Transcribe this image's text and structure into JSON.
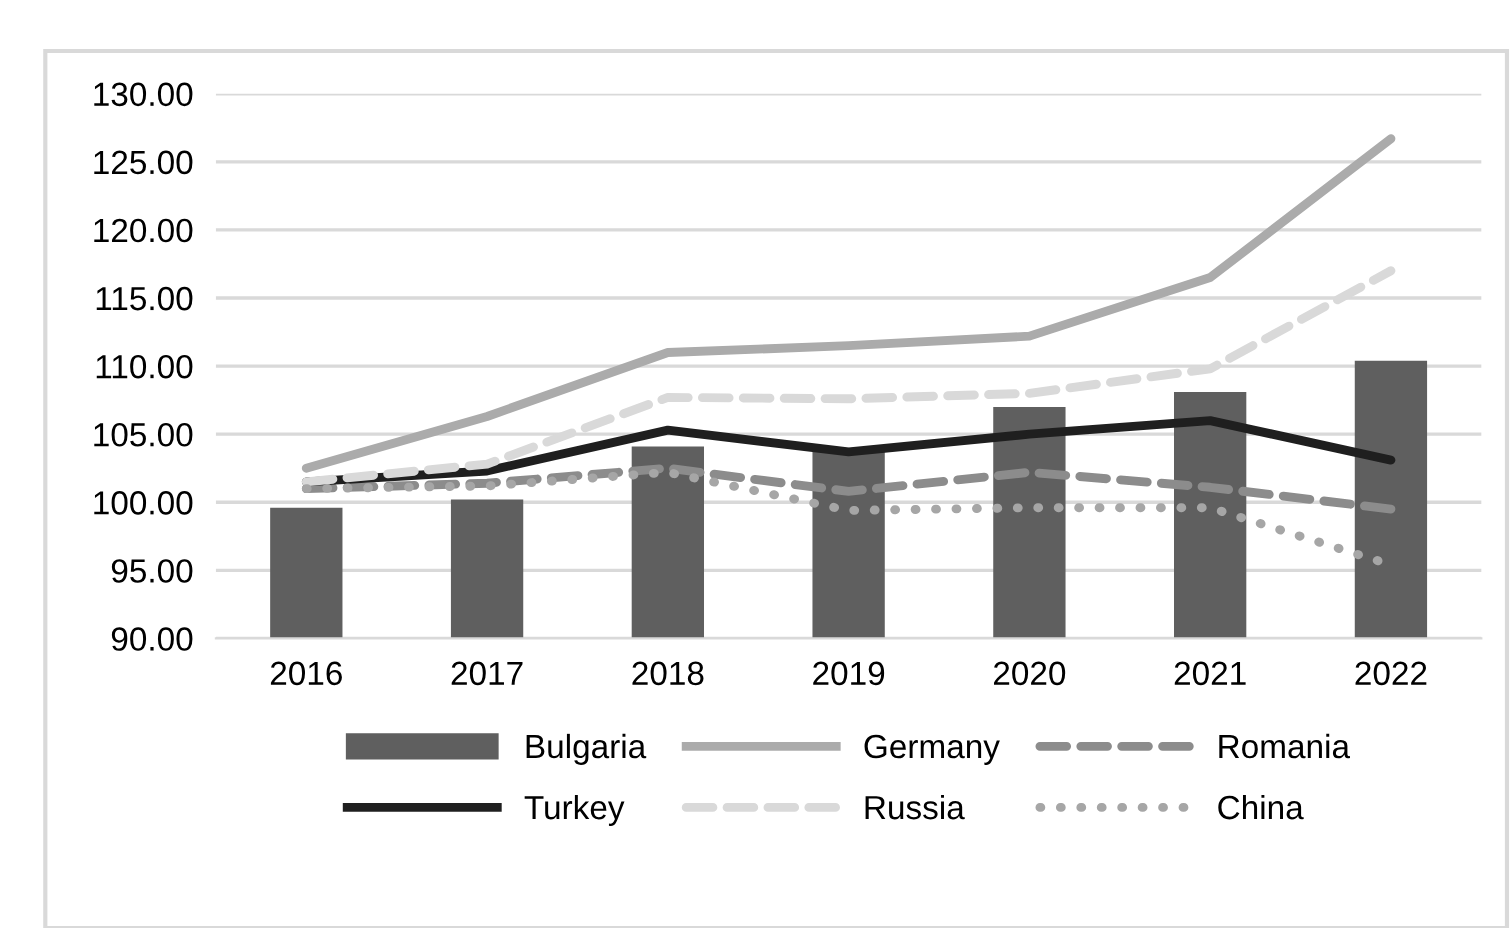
{
  "chart_data": {
    "type": "bar",
    "categories": [
      "2016",
      "2017",
      "2018",
      "2019",
      "2020",
      "2021",
      "2022"
    ],
    "series": [
      {
        "name": "Bulgaria",
        "color": "#5f5f5f",
        "values": [
          99.6,
          100.2,
          104.1,
          103.9,
          107.0,
          108.1,
          110.4
        ]
      },
      {
        "name": "Germany",
        "type": "line",
        "color": "#ababab",
        "line_style": "solid",
        "values": [
          102.5,
          106.3,
          111.0,
          111.5,
          112.2,
          116.5,
          126.7
        ]
      },
      {
        "name": "Romania",
        "type": "line",
        "color": "#8c8c8c",
        "line_style": "dashed",
        "values": [
          101.0,
          101.4,
          102.5,
          100.8,
          102.2,
          101.1,
          99.5
        ]
      },
      {
        "name": "Turkey",
        "type": "line",
        "color": "#1f1f1f",
        "line_style": "solid",
        "values": [
          101.5,
          102.3,
          105.3,
          103.7,
          105.0,
          106.0,
          103.1
        ]
      },
      {
        "name": "Russia",
        "type": "line",
        "color": "#d9d9d9",
        "line_style": "dashed",
        "values": [
          101.5,
          102.8,
          107.7,
          107.6,
          108.0,
          109.8,
          117.0
        ]
      },
      {
        "name": "China",
        "type": "line",
        "color": "#a6a6a6",
        "line_style": "dotted",
        "values": [
          101.0,
          101.2,
          102.2,
          99.4,
          99.6,
          99.6,
          95.4
        ]
      }
    ],
    "ylim": [
      90,
      130
    ],
    "yticks": [
      {
        "value": 90,
        "label": "90.00"
      },
      {
        "value": 95,
        "label": "95.00"
      },
      {
        "value": 100,
        "label": "100.00"
      },
      {
        "value": 105,
        "label": "105.00"
      },
      {
        "value": 110,
        "label": "110.00"
      },
      {
        "value": 115,
        "label": "115.00"
      },
      {
        "value": 120,
        "label": "120.00"
      },
      {
        "value": 125,
        "label": "125.00"
      },
      {
        "value": 130,
        "label": "130.00"
      }
    ],
    "grid": "y",
    "legend": "bottom"
  }
}
